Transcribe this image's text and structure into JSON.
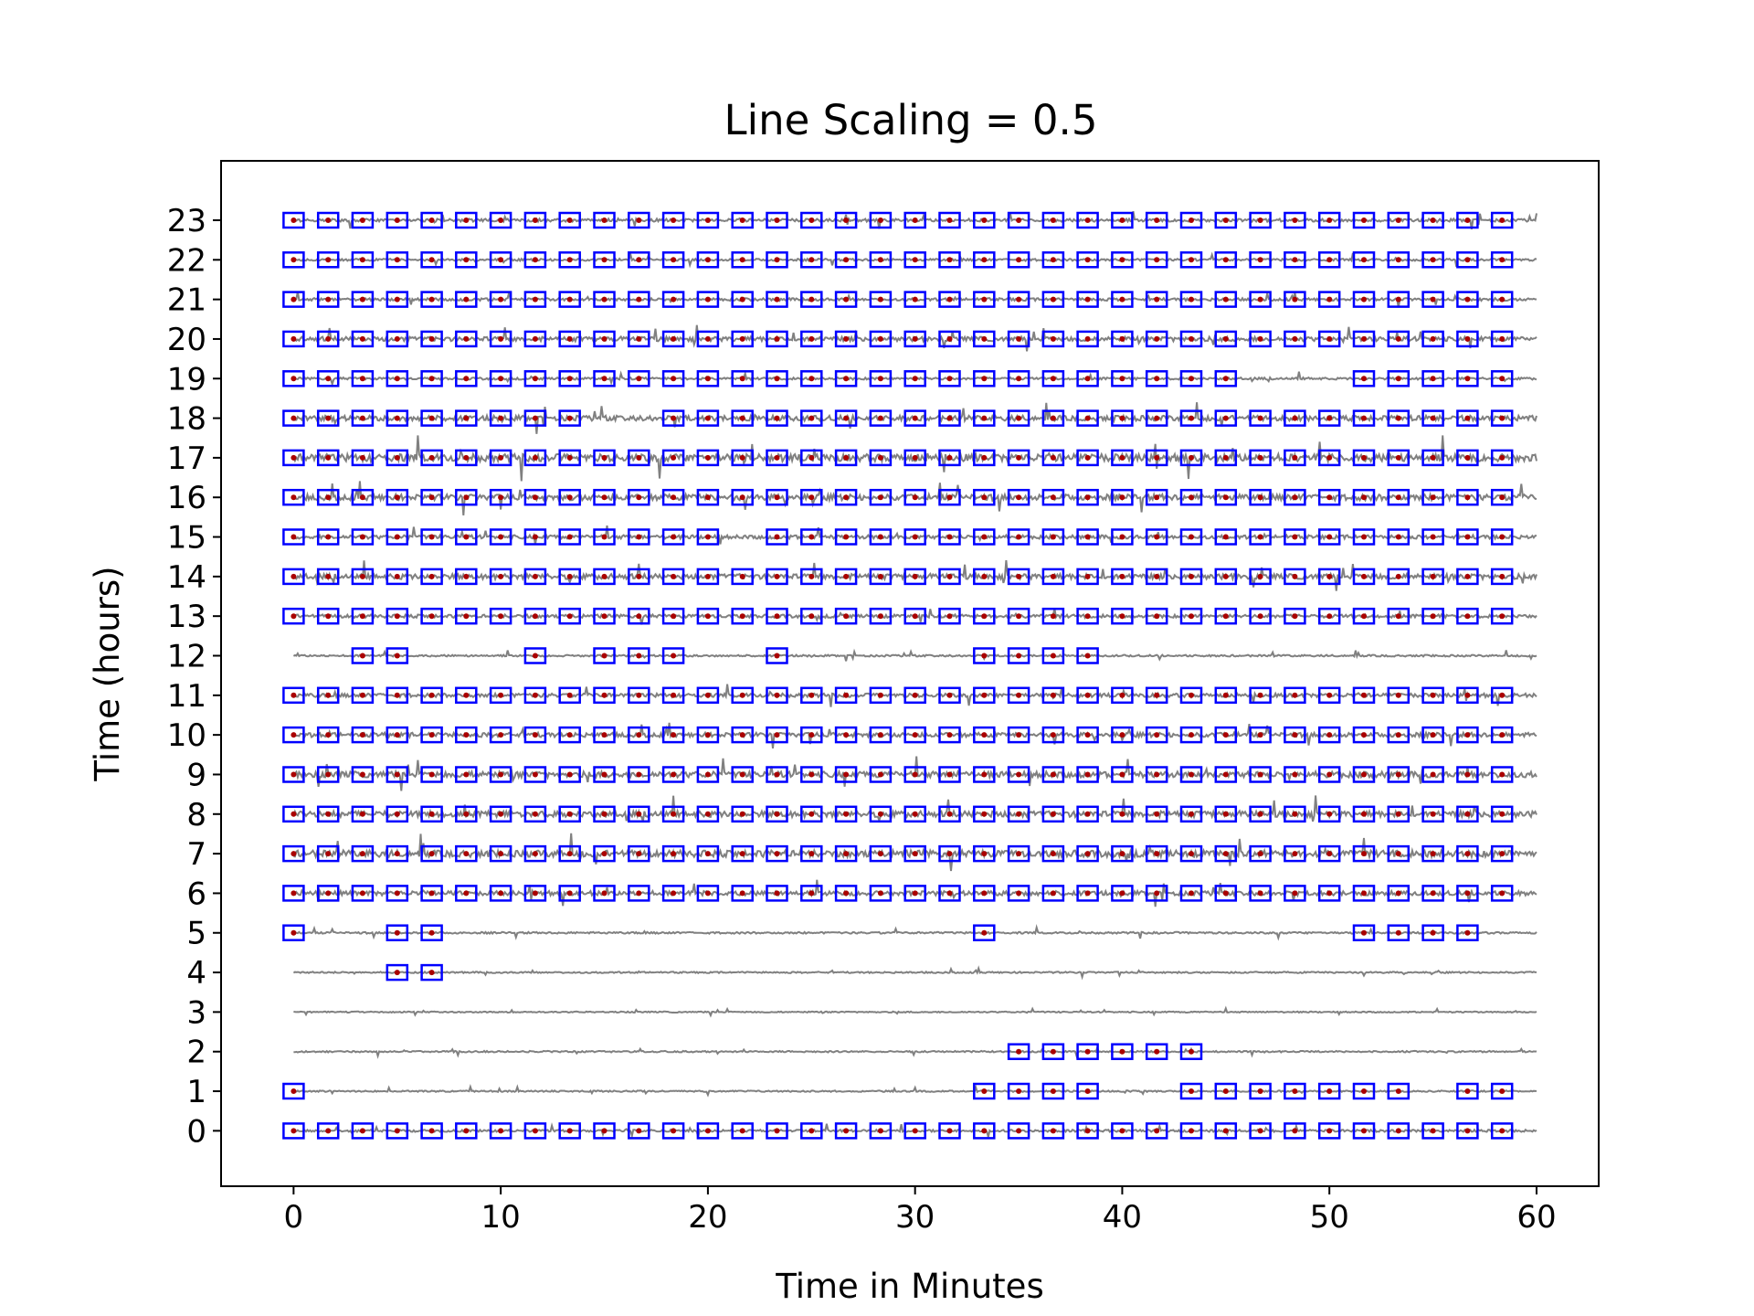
{
  "chart_data": {
    "type": "line",
    "title": "Line Scaling = 0.5",
    "xlabel": "Time in Minutes",
    "ylabel": "Time (hours)",
    "xlim": [
      -3.5,
      63
    ],
    "ylim": [
      -1.4,
      24.5
    ],
    "xticks": [
      0,
      10,
      20,
      30,
      40,
      50,
      60
    ],
    "yticks": [
      0,
      1,
      2,
      3,
      4,
      5,
      6,
      7,
      8,
      9,
      10,
      11,
      12,
      13,
      14,
      15,
      16,
      17,
      18,
      19,
      20,
      21,
      22,
      23
    ],
    "grid": false,
    "trace_color": "#808080",
    "marker_box_color": "#0000ff",
    "marker_dot_color": "#aa0000",
    "window_minutes": [
      0.0,
      1.667,
      3.333,
      5.0,
      6.667,
      8.333,
      10.0,
      11.667,
      13.333,
      15.0,
      16.667,
      18.333,
      20.0,
      21.667,
      23.333,
      25.0,
      26.667,
      28.333,
      30.0,
      31.667,
      33.333,
      35.0,
      36.667,
      38.333,
      40.0,
      41.667,
      43.333,
      45.0,
      46.667,
      48.333,
      50.0,
      51.667,
      53.333,
      55.0,
      56.667,
      58.333
    ],
    "series": [
      {
        "hour": 0,
        "amplitude": 0.15,
        "detections": [
          0,
          1,
          2,
          3,
          4,
          5,
          6,
          7,
          8,
          9,
          10,
          11,
          12,
          13,
          14,
          15,
          16,
          17,
          18,
          19,
          20,
          21,
          22,
          23,
          24,
          25,
          26,
          27,
          28,
          29,
          30,
          31,
          32,
          33,
          34,
          35
        ]
      },
      {
        "hour": 1,
        "amplitude": 0.1,
        "detections": [
          0,
          20,
          21,
          22,
          23,
          26,
          27,
          28,
          29,
          30,
          31,
          32,
          34,
          35
        ]
      },
      {
        "hour": 2,
        "amplitude": 0.1,
        "detections": [
          21,
          22,
          23,
          24,
          25,
          26
        ]
      },
      {
        "hour": 3,
        "amplitude": 0.08,
        "detections": []
      },
      {
        "hour": 4,
        "amplitude": 0.1,
        "detections": [
          3,
          4
        ]
      },
      {
        "hour": 5,
        "amplitude": 0.12,
        "detections": [
          0,
          3,
          4,
          20,
          31,
          32,
          33,
          34
        ]
      },
      {
        "hour": 6,
        "amplitude": 0.3,
        "detections": [
          0,
          1,
          2,
          3,
          4,
          5,
          6,
          7,
          8,
          9,
          10,
          11,
          12,
          13,
          14,
          15,
          16,
          17,
          18,
          19,
          20,
          21,
          22,
          23,
          24,
          25,
          26,
          27,
          28,
          29,
          30,
          31,
          32,
          33,
          34,
          35
        ]
      },
      {
        "hour": 7,
        "amplitude": 0.45,
        "detections": [
          0,
          1,
          2,
          3,
          4,
          5,
          6,
          7,
          8,
          9,
          10,
          11,
          12,
          13,
          14,
          15,
          16,
          17,
          18,
          19,
          20,
          21,
          22,
          23,
          24,
          25,
          26,
          27,
          28,
          29,
          30,
          31,
          32,
          33,
          34,
          35
        ]
      },
      {
        "hour": 8,
        "amplitude": 0.4,
        "detections": [
          0,
          1,
          2,
          3,
          4,
          5,
          6,
          7,
          8,
          9,
          10,
          11,
          12,
          13,
          14,
          15,
          16,
          17,
          18,
          19,
          20,
          21,
          22,
          23,
          24,
          25,
          26,
          27,
          28,
          29,
          30,
          31,
          32,
          33,
          34,
          35
        ]
      },
      {
        "hour": 9,
        "amplitude": 0.4,
        "detections": [
          0,
          1,
          2,
          3,
          4,
          5,
          6,
          7,
          8,
          9,
          10,
          11,
          12,
          13,
          14,
          15,
          16,
          17,
          18,
          19,
          20,
          21,
          22,
          23,
          24,
          25,
          26,
          27,
          28,
          29,
          30,
          31,
          32,
          33,
          34,
          35
        ]
      },
      {
        "hour": 10,
        "amplitude": 0.3,
        "detections": [
          0,
          1,
          2,
          3,
          4,
          5,
          6,
          7,
          8,
          9,
          10,
          11,
          12,
          13,
          14,
          15,
          16,
          17,
          18,
          19,
          20,
          21,
          22,
          23,
          24,
          25,
          26,
          27,
          28,
          29,
          30,
          31,
          32,
          33,
          34,
          35
        ]
      },
      {
        "hour": 11,
        "amplitude": 0.25,
        "detections": [
          0,
          1,
          2,
          3,
          4,
          5,
          6,
          7,
          8,
          9,
          10,
          11,
          12,
          13,
          14,
          15,
          16,
          17,
          18,
          19,
          20,
          21,
          22,
          23,
          24,
          25,
          26,
          27,
          28,
          29,
          30,
          31,
          32,
          33,
          34,
          35
        ]
      },
      {
        "hour": 12,
        "amplitude": 0.12,
        "detections": [
          2,
          3,
          7,
          9,
          10,
          11,
          14,
          20,
          21,
          22,
          23
        ]
      },
      {
        "hour": 13,
        "amplitude": 0.22,
        "detections": [
          0,
          1,
          2,
          3,
          4,
          5,
          6,
          7,
          8,
          9,
          10,
          11,
          12,
          13,
          14,
          15,
          16,
          17,
          18,
          19,
          20,
          21,
          22,
          23,
          24,
          25,
          26,
          27,
          28,
          29,
          30,
          31,
          32,
          33,
          34,
          35
        ]
      },
      {
        "hour": 14,
        "amplitude": 0.35,
        "detections": [
          0,
          1,
          2,
          3,
          4,
          5,
          6,
          7,
          8,
          9,
          10,
          11,
          12,
          13,
          14,
          15,
          16,
          17,
          18,
          19,
          20,
          21,
          22,
          23,
          24,
          25,
          26,
          27,
          28,
          29,
          30,
          31,
          32,
          33,
          34,
          35
        ]
      },
      {
        "hour": 15,
        "amplitude": 0.25,
        "detections": [
          0,
          1,
          2,
          3,
          4,
          5,
          6,
          7,
          8,
          9,
          10,
          11,
          12,
          14,
          15,
          16,
          17,
          18,
          19,
          20,
          21,
          22,
          23,
          24,
          25,
          26,
          27,
          28,
          29,
          30,
          31,
          32,
          33,
          34,
          35
        ]
      },
      {
        "hour": 16,
        "amplitude": 0.4,
        "detections": [
          0,
          1,
          2,
          3,
          4,
          5,
          6,
          7,
          8,
          9,
          10,
          11,
          12,
          13,
          14,
          15,
          16,
          17,
          18,
          19,
          20,
          21,
          22,
          23,
          24,
          25,
          26,
          27,
          28,
          29,
          30,
          31,
          32,
          33,
          34,
          35
        ]
      },
      {
        "hour": 17,
        "amplitude": 0.5,
        "detections": [
          0,
          1,
          2,
          3,
          4,
          5,
          6,
          7,
          8,
          9,
          10,
          11,
          12,
          13,
          14,
          15,
          16,
          17,
          18,
          19,
          20,
          21,
          22,
          23,
          24,
          25,
          26,
          27,
          28,
          29,
          30,
          31,
          32,
          33,
          34,
          35
        ]
      },
      {
        "hour": 18,
        "amplitude": 0.35,
        "detections": [
          0,
          1,
          2,
          3,
          4,
          5,
          6,
          7,
          8,
          11,
          12,
          13,
          14,
          15,
          16,
          17,
          18,
          19,
          20,
          21,
          22,
          23,
          24,
          25,
          26,
          27,
          28,
          29,
          30,
          31,
          32,
          33,
          34,
          35
        ]
      },
      {
        "hour": 19,
        "amplitude": 0.15,
        "detections": [
          0,
          1,
          2,
          3,
          4,
          5,
          6,
          7,
          8,
          9,
          10,
          11,
          12,
          13,
          14,
          15,
          16,
          17,
          18,
          19,
          20,
          21,
          22,
          23,
          24,
          25,
          26,
          27,
          31,
          32,
          33,
          34,
          35
        ]
      },
      {
        "hour": 20,
        "amplitude": 0.3,
        "detections": [
          0,
          1,
          2,
          3,
          4,
          5,
          6,
          7,
          8,
          9,
          10,
          11,
          12,
          13,
          14,
          15,
          16,
          17,
          18,
          19,
          20,
          21,
          22,
          23,
          24,
          25,
          26,
          27,
          28,
          29,
          30,
          31,
          32,
          33,
          34,
          35
        ]
      },
      {
        "hour": 21,
        "amplitude": 0.18,
        "detections": [
          0,
          1,
          2,
          3,
          4,
          5,
          6,
          7,
          8,
          9,
          10,
          11,
          12,
          13,
          14,
          15,
          16,
          17,
          18,
          19,
          20,
          21,
          22,
          23,
          24,
          25,
          26,
          27,
          28,
          29,
          30,
          31,
          32,
          33,
          34,
          35
        ]
      },
      {
        "hour": 22,
        "amplitude": 0.15,
        "detections": [
          0,
          1,
          2,
          3,
          4,
          5,
          6,
          7,
          8,
          9,
          10,
          11,
          12,
          13,
          14,
          15,
          16,
          17,
          18,
          19,
          20,
          21,
          22,
          23,
          24,
          25,
          26,
          27,
          28,
          29,
          30,
          31,
          32,
          33,
          34,
          35
        ]
      },
      {
        "hour": 23,
        "amplitude": 0.2,
        "detections": [
          0,
          1,
          2,
          3,
          4,
          5,
          6,
          7,
          8,
          9,
          10,
          11,
          12,
          13,
          14,
          15,
          16,
          17,
          18,
          19,
          20,
          21,
          22,
          23,
          24,
          25,
          26,
          27,
          28,
          29,
          30,
          31,
          32,
          33,
          34,
          35
        ]
      }
    ]
  }
}
